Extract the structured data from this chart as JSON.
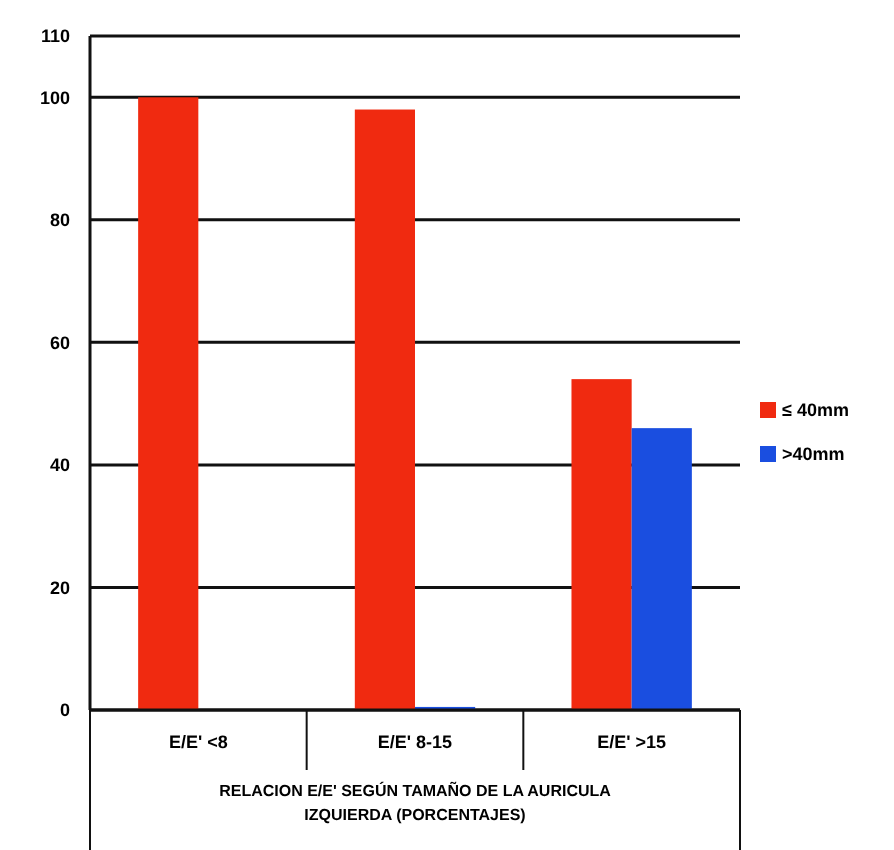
{
  "chart_data": {
    "type": "bar",
    "xlabel": "RELACION E/E' SEGÚN TAMAÑO DE LA AURICULA IZQUIERDA (PORCENTAJES)",
    "categories": [
      "E/E' <8",
      "E/E' 8-15",
      "E/E' >15"
    ],
    "series": [
      {
        "name": "≤ 40mm",
        "color": "#f02a10",
        "values": [
          100,
          98,
          54
        ]
      },
      {
        "name": ">40mm",
        "color": "#1a4ee0",
        "values": [
          0,
          0.5,
          46
        ]
      }
    ],
    "ylim": [
      0,
      110
    ],
    "yticks": [
      0,
      20,
      40,
      60,
      80,
      100,
      110
    ],
    "grid": "y",
    "legend": "right"
  }
}
